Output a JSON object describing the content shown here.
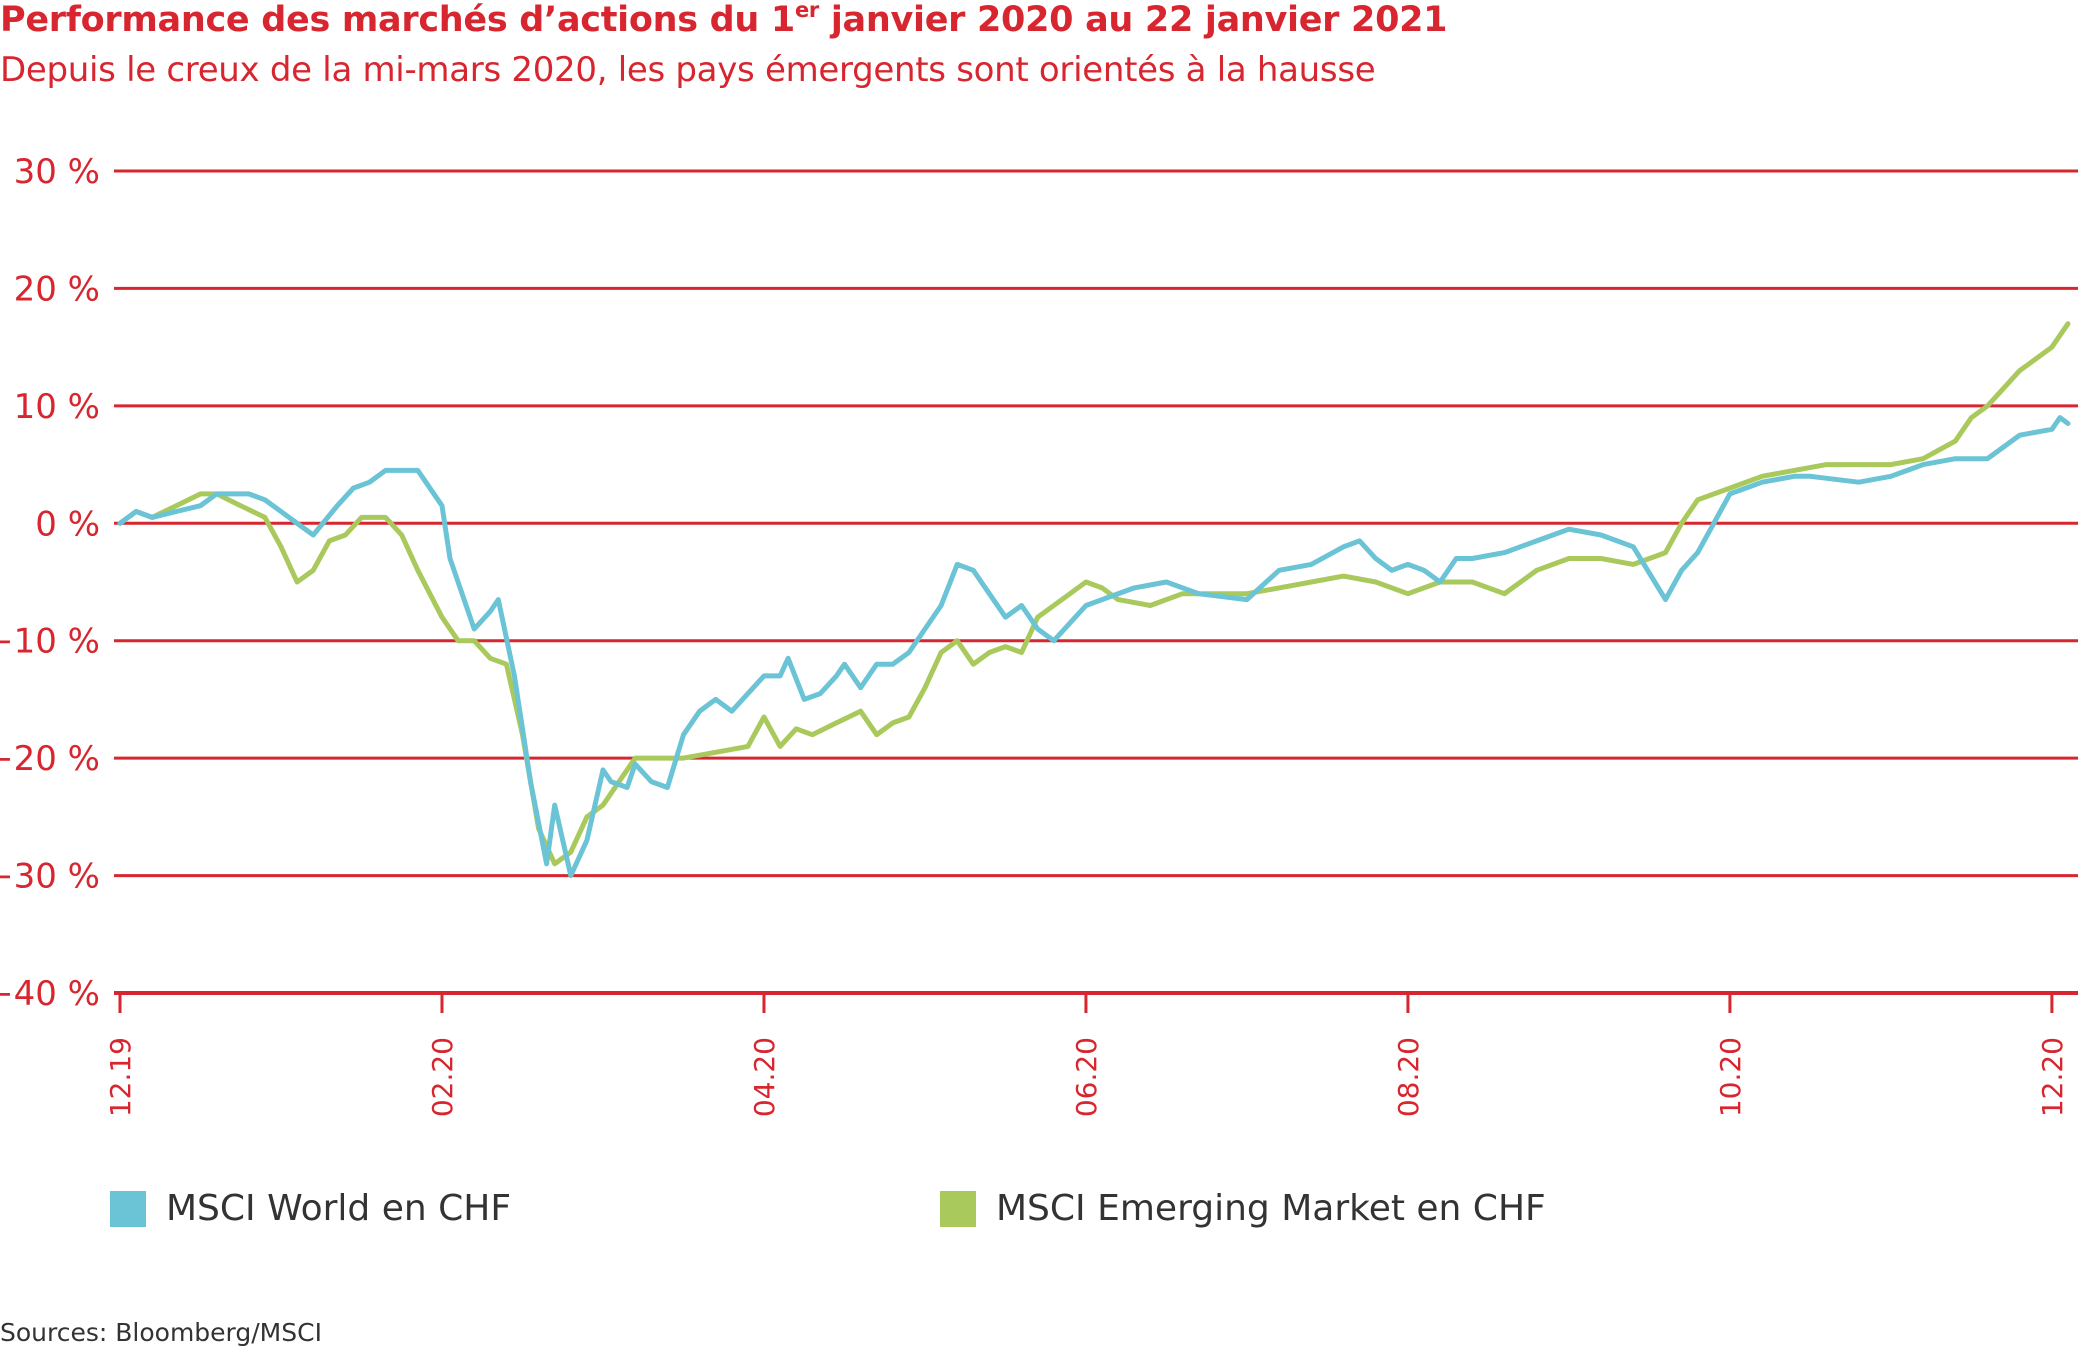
{
  "header": {
    "title_main": "Performance des marchés d’actions du 1",
    "title_sup": "er",
    "title_rest": " janvier 2020 au 22 janvier 2021",
    "subtitle": "Depuis le creux de la mi-mars 2020, les pays émergents sont orientés à la hausse"
  },
  "source": "Sources: Bloomberg/MSCI",
  "colors": {
    "accent": "#d7262f",
    "world": "#6bc3d6",
    "emerging": "#a9c95c"
  },
  "chart_data": {
    "type": "line",
    "x_tick_labels": [
      "12.19",
      "02.20",
      "04.20",
      "06.20",
      "08.20",
      "10.20",
      "12.20"
    ],
    "y_tick_labels": [
      "30 %",
      "20 %",
      "10 %",
      "0 %",
      "−10 %",
      "−20 %",
      "−30 %",
      "−40 %"
    ],
    "y_ticks": [
      30,
      20,
      10,
      0,
      -10,
      -20,
      -30,
      -40
    ],
    "ylim": [
      -40,
      30
    ],
    "x_unit": "months since 12.19",
    "xlim": [
      0,
      12.1
    ],
    "grid": "horizontal",
    "legend_position": "bottom",
    "series": [
      {
        "name": "MSCI World en CHF",
        "color": "#6bc3d6",
        "x": [
          0,
          0.1,
          0.2,
          0.35,
          0.5,
          0.6,
          0.8,
          0.9,
          1.0,
          1.1,
          1.2,
          1.35,
          1.45,
          1.55,
          1.65,
          1.75,
          1.85,
          2.0,
          2.05,
          2.2,
          2.3,
          2.35,
          2.45,
          2.5,
          2.55,
          2.65,
          2.7,
          2.8,
          2.9,
          3.0,
          3.05,
          3.15,
          3.2,
          3.3,
          3.4,
          3.5,
          3.6,
          3.7,
          3.8,
          3.9,
          4.0,
          4.1,
          4.15,
          4.25,
          4.35,
          4.45,
          4.5,
          4.6,
          4.7,
          4.8,
          4.9,
          5.0,
          5.1,
          5.2,
          5.3,
          5.5,
          5.6,
          5.7,
          5.8,
          6.0,
          6.1,
          6.3,
          6.5,
          6.7,
          7.0,
          7.2,
          7.4,
          7.6,
          7.7,
          7.8,
          7.9,
          8.0,
          8.1,
          8.2,
          8.3,
          8.4,
          8.6,
          8.8,
          9.0,
          9.2,
          9.4,
          9.6,
          9.7,
          9.8,
          9.9,
          10.0,
          10.2,
          10.4,
          10.5,
          10.8,
          11.0,
          11.2,
          11.4,
          11.5,
          11.6,
          11.8,
          12.0,
          12.05,
          12.1
        ],
        "y": [
          0,
          1,
          0.5,
          1,
          1.5,
          2.5,
          2.5,
          2,
          1,
          0,
          -1,
          1.5,
          3,
          3.5,
          4.5,
          4.5,
          4.5,
          1.5,
          -3,
          -9,
          -7.5,
          -6.5,
          -13,
          -17.5,
          -22,
          -29,
          -24,
          -30,
          -27,
          -21,
          -22,
          -22.5,
          -20.5,
          -22,
          -22.5,
          -18,
          -16,
          -15,
          -16,
          -14.5,
          -13,
          -13,
          -11.5,
          -15,
          -14.5,
          -13,
          -12,
          -14,
          -12,
          -12,
          -11,
          -9,
          -7,
          -3.5,
          -4,
          -8,
          -7,
          -9,
          -10,
          -7,
          -6.5,
          -5.5,
          -5,
          -6,
          -6.5,
          -4,
          -3.5,
          -2,
          -1.5,
          -3,
          -4,
          -3.5,
          -4,
          -5,
          -3,
          -3,
          -2.5,
          -1.5,
          -0.5,
          -1,
          -2,
          -6.5,
          -4,
          -2.5,
          0,
          2.5,
          3.5,
          4,
          4,
          3.5,
          4,
          5,
          5.5,
          5.5,
          5.5,
          7.5,
          8,
          9,
          8.5
        ]
      },
      {
        "name": "MSCI Emerging Market en CHF",
        "color": "#a9c95c",
        "x": [
          0,
          0.1,
          0.2,
          0.35,
          0.5,
          0.6,
          0.75,
          0.9,
          1.0,
          1.1,
          1.2,
          1.3,
          1.4,
          1.5,
          1.65,
          1.75,
          1.85,
          2.0,
          2.1,
          2.2,
          2.3,
          2.4,
          2.5,
          2.6,
          2.7,
          2.8,
          2.9,
          3.0,
          3.1,
          3.2,
          3.3,
          3.5,
          3.7,
          3.9,
          4.0,
          4.1,
          4.2,
          4.3,
          4.45,
          4.6,
          4.7,
          4.8,
          4.9,
          5.0,
          5.1,
          5.2,
          5.3,
          5.4,
          5.5,
          5.6,
          5.7,
          5.8,
          6.0,
          6.1,
          6.2,
          6.4,
          6.6,
          6.8,
          7.0,
          7.2,
          7.4,
          7.6,
          7.8,
          8.0,
          8.2,
          8.4,
          8.6,
          8.8,
          9.0,
          9.2,
          9.4,
          9.6,
          9.7,
          9.8,
          10.0,
          10.2,
          10.4,
          10.6,
          10.8,
          11.0,
          11.2,
          11.4,
          11.5,
          11.6,
          11.8,
          11.9,
          12.0,
          12.1
        ],
        "y": [
          0,
          1,
          0.5,
          1.5,
          2.5,
          2.5,
          1.5,
          0.5,
          -2,
          -5,
          -4,
          -1.5,
          -1,
          0.5,
          0.5,
          -1,
          -4,
          -8,
          -10,
          -10,
          -11.5,
          -12,
          -18,
          -26,
          -29,
          -28,
          -25,
          -24,
          -22,
          -20,
          -20,
          -20,
          -19.5,
          -19,
          -16.5,
          -19,
          -17.5,
          -18,
          -17,
          -16,
          -18,
          -17,
          -16.5,
          -14,
          -11,
          -10,
          -12,
          -11,
          -10.5,
          -11,
          -8,
          -7,
          -5,
          -5.5,
          -6.5,
          -7,
          -6,
          -6,
          -6,
          -5.5,
          -5,
          -4.5,
          -5,
          -6,
          -5,
          -5,
          -6,
          -4,
          -3,
          -3,
          -3.5,
          -2.5,
          0,
          2,
          3,
          4,
          4.5,
          5,
          5,
          5,
          5.5,
          7,
          9,
          10,
          13,
          14,
          15,
          17
        ]
      }
    ]
  }
}
